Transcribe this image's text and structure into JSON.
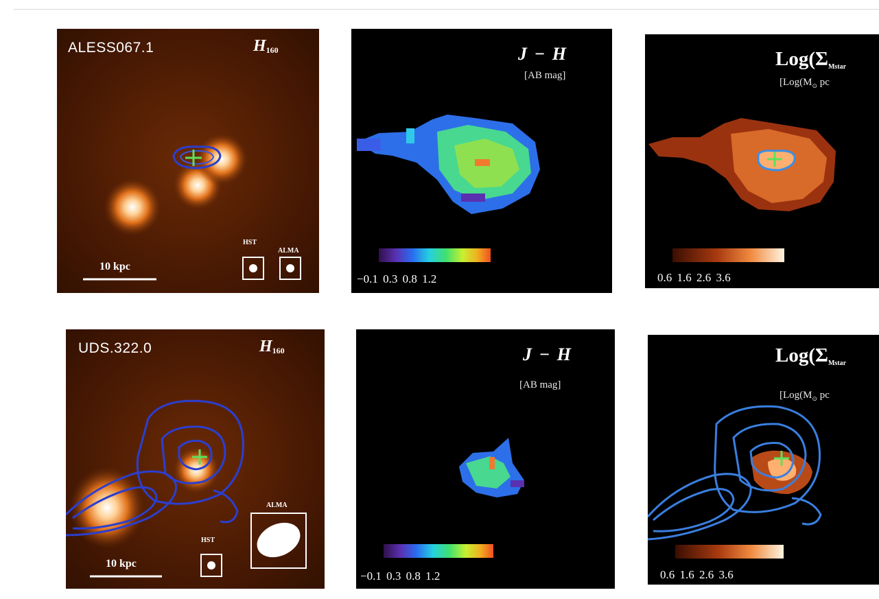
{
  "figure": {
    "rows": [
      {
        "source": "ALESS067.1",
        "band": "H",
        "band_sub": "160",
        "color_label": "J − H",
        "color_unit": "[AB mag]",
        "color_ticks": "−0.1 0.3  0.8  1.2",
        "mass_label": "Log(Σ",
        "mass_label_sub": "Mstar",
        "mass_unit": "[Log(M",
        "mass_unit_tail": " pc",
        "mass_ticks": "0.6  1.6  2.6  3.6",
        "scalebar": "10 kpc",
        "beam_hst": "HST",
        "beam_alma": "ALMA"
      },
      {
        "source": "UDS.322.0",
        "band": "H",
        "band_sub": "160",
        "color_label": "J − H",
        "color_unit": "[AB mag]",
        "color_ticks": "−0.1 0.3  0.8  1.2",
        "mass_label": "Log(Σ",
        "mass_label_sub": "Mstar",
        "mass_unit": "[Log(M",
        "mass_unit_tail": " pc",
        "mass_ticks": "0.6  1.6  2.6  3.6",
        "scalebar": "10 kpc",
        "beam_hst": "HST",
        "beam_alma": "ALMA"
      }
    ]
  },
  "colors": {
    "contour": "#2b3fcf",
    "contour_light": "#3a7fe0",
    "centroid": "#5de05d"
  }
}
